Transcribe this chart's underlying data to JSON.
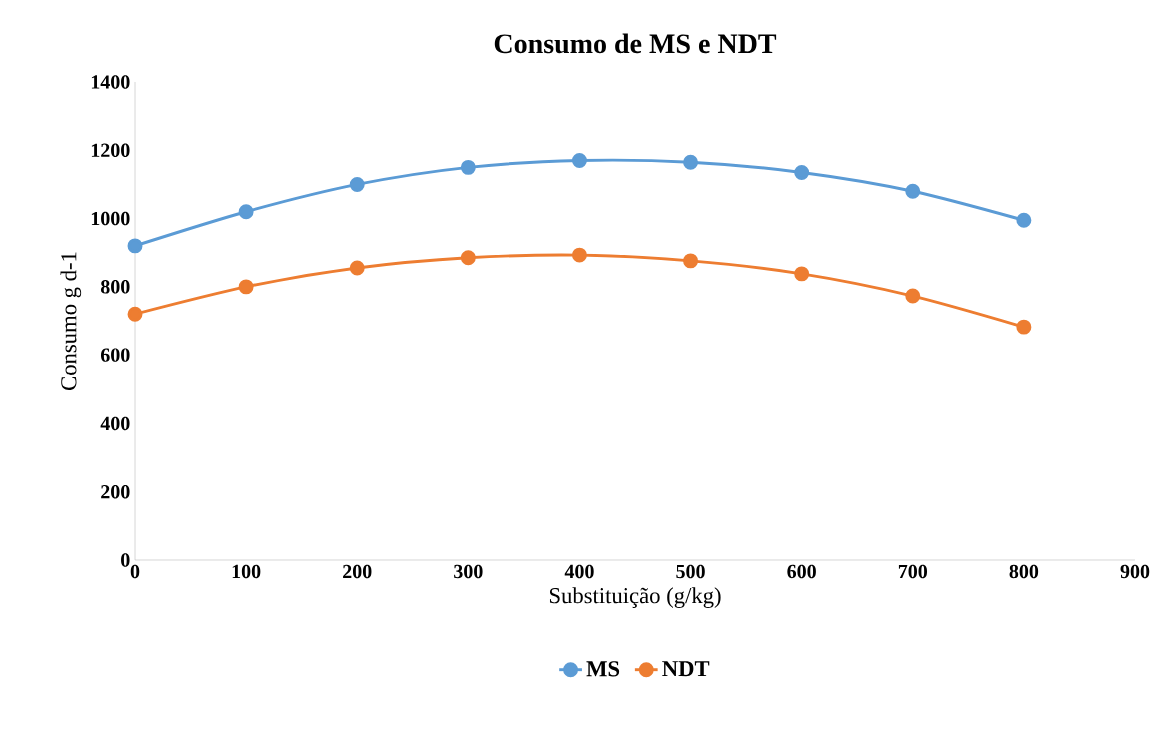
{
  "chart_data": {
    "type": "line",
    "title": "Consumo de MS e NDT",
    "xlabel": "Substituição (g/kg)",
    "ylabel": "Consumo g d-1",
    "x": [
      0,
      100,
      200,
      300,
      400,
      500,
      600,
      700,
      800
    ],
    "series": [
      {
        "name": "MS",
        "color": "#5b9bd5",
        "values": [
          920,
          1020,
          1100,
          1150,
          1170,
          1165,
          1135,
          1080,
          995
        ]
      },
      {
        "name": "NDT",
        "color": "#ed7d31",
        "values": [
          720,
          800,
          855,
          885,
          893,
          876,
          838,
          773,
          682
        ]
      }
    ],
    "xlim": [
      0,
      900
    ],
    "ylim": [
      0,
      1400
    ],
    "xticks": [
      0,
      100,
      200,
      300,
      400,
      500,
      600,
      700,
      800,
      900
    ],
    "yticks": [
      0,
      200,
      400,
      600,
      800,
      1000,
      1200,
      1400
    ],
    "grid": false,
    "legend": "bottom",
    "marker": "circle",
    "line_style": "solid"
  }
}
